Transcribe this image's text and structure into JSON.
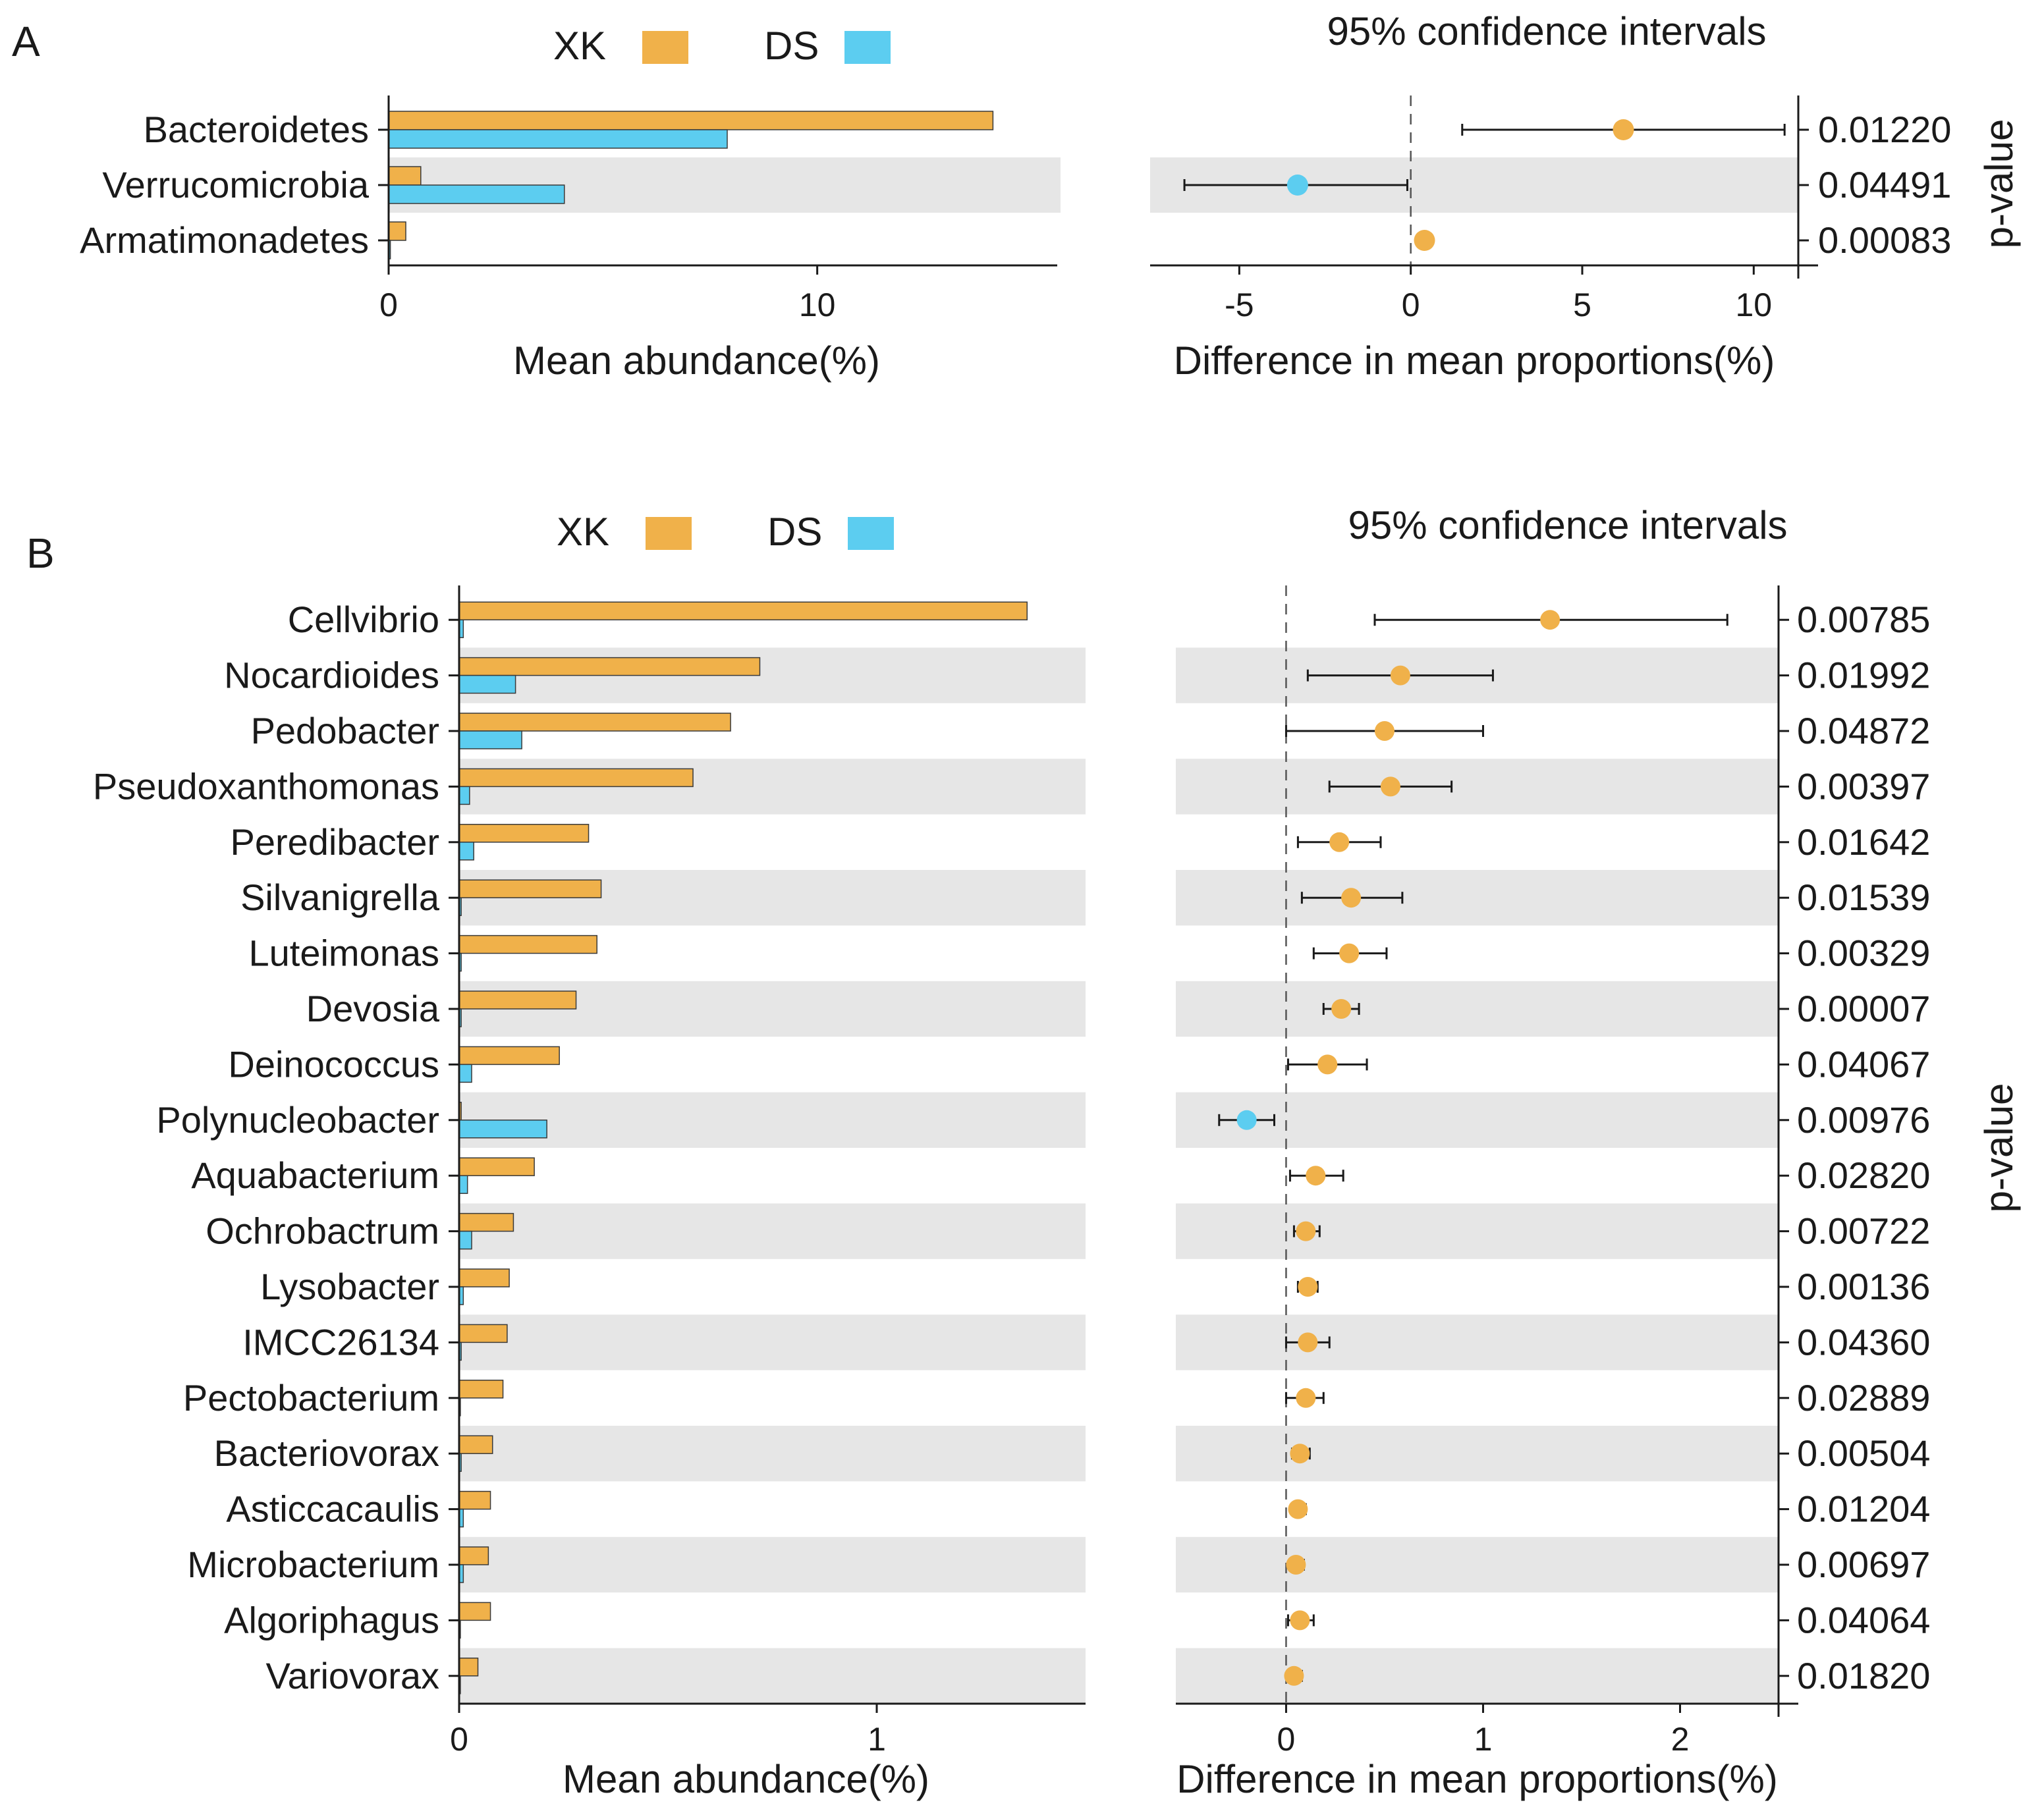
{
  "colors": {
    "xk": "#F0B14A",
    "ds": "#5CCDF0",
    "stripe": "#E6E6E6",
    "axis": "#1a1a1a"
  },
  "chart_data": [
    {
      "panel": "A",
      "type": "bar",
      "legend": [
        {
          "name": "XK",
          "color": "#F0B14A"
        },
        {
          "name": "DS",
          "color": "#5CCDF0"
        }
      ],
      "categories": [
        "Bacteroidetes",
        "Verrucomicrobia",
        "Armatimonadetes"
      ],
      "series": [
        {
          "name": "XK",
          "values": [
            14.1,
            0.75,
            0.4
          ]
        },
        {
          "name": "DS",
          "values": [
            7.9,
            4.1,
            0.04
          ]
        }
      ],
      "xlabel": "Mean abundance(%)",
      "xlim": [
        0,
        15.6
      ],
      "xticks": [
        0,
        10
      ],
      "ci": {
        "title": "95% confidence intervals",
        "xlabel": "Difference in mean proportions(%)",
        "xlim": [
          -7.6,
          11.3
        ],
        "xticks": [
          -5,
          0,
          5,
          10
        ],
        "points": [
          {
            "mean": 6.2,
            "low": 1.5,
            "high": 10.9,
            "group": "XK"
          },
          {
            "mean": -3.3,
            "low": -6.6,
            "high": -0.1,
            "group": "DS"
          },
          {
            "mean": 0.4,
            "low": 0.25,
            "high": 0.55,
            "group": "XK"
          }
        ],
        "pvalue_label": "p-value",
        "pvalues": [
          "0.01220",
          "0.04491",
          "0.00083"
        ]
      }
    },
    {
      "panel": "B",
      "type": "bar",
      "legend": [
        {
          "name": "XK",
          "color": "#F0B14A"
        },
        {
          "name": "DS",
          "color": "#5CCDF0"
        }
      ],
      "categories": [
        "Cellvibrio",
        "Nocardioides",
        "Pedobacter",
        "Pseudoxanthomonas",
        "Peredibacter",
        "Silvanigrella",
        "Luteimonas",
        "Devosia",
        "Deinococcus",
        "Polynucleobacter",
        "Aquabacterium",
        "Ochrobactrum",
        "Lysobacter",
        "IMCC26134",
        "Pectobacterium",
        "Bacteriovorax",
        "Asticcacaulis",
        "Microbacterium",
        "Algoriphagus",
        "Variovorax"
      ],
      "series": [
        {
          "name": "XK",
          "values": [
            1.36,
            0.72,
            0.65,
            0.56,
            0.31,
            0.34,
            0.33,
            0.28,
            0.24,
            0.005,
            0.18,
            0.13,
            0.12,
            0.115,
            0.105,
            0.08,
            0.075,
            0.07,
            0.075,
            0.045
          ]
        },
        {
          "name": "DS",
          "values": [
            0.01,
            0.135,
            0.15,
            0.025,
            0.035,
            0.005,
            0.005,
            0.005,
            0.03,
            0.21,
            0.02,
            0.03,
            0.01,
            0.005,
            0.003,
            0.005,
            0.01,
            0.01,
            0.003,
            0.003
          ]
        }
      ],
      "xlabel": "Mean abundance(%)",
      "xlim": [
        0,
        1.5
      ],
      "xticks": [
        0,
        1
      ],
      "ci": {
        "title": "95% confidence intervals",
        "xlabel": "Difference in mean proportions(%)",
        "xlim": [
          -0.56,
          2.5
        ],
        "xticks": [
          0,
          1,
          2
        ],
        "points": [
          {
            "mean": 1.34,
            "low": 0.45,
            "high": 2.24,
            "group": "XK"
          },
          {
            "mean": 0.58,
            "low": 0.11,
            "high": 1.05,
            "group": "XK"
          },
          {
            "mean": 0.5,
            "low": 0.0,
            "high": 1.0,
            "group": "XK"
          },
          {
            "mean": 0.53,
            "low": 0.22,
            "high": 0.84,
            "group": "XK"
          },
          {
            "mean": 0.27,
            "low": 0.06,
            "high": 0.48,
            "group": "XK"
          },
          {
            "mean": 0.33,
            "low": 0.08,
            "high": 0.59,
            "group": "XK"
          },
          {
            "mean": 0.32,
            "low": 0.14,
            "high": 0.51,
            "group": "XK"
          },
          {
            "mean": 0.28,
            "low": 0.19,
            "high": 0.37,
            "group": "XK"
          },
          {
            "mean": 0.21,
            "low": 0.01,
            "high": 0.41,
            "group": "XK"
          },
          {
            "mean": -0.2,
            "low": -0.34,
            "high": -0.06,
            "group": "DS"
          },
          {
            "mean": 0.15,
            "low": 0.02,
            "high": 0.29,
            "group": "XK"
          },
          {
            "mean": 0.1,
            "low": 0.04,
            "high": 0.17,
            "group": "XK"
          },
          {
            "mean": 0.11,
            "low": 0.06,
            "high": 0.16,
            "group": "XK"
          },
          {
            "mean": 0.11,
            "low": 0.0,
            "high": 0.22,
            "group": "XK"
          },
          {
            "mean": 0.1,
            "low": 0.0,
            "high": 0.19,
            "group": "XK"
          },
          {
            "mean": 0.07,
            "low": 0.03,
            "high": 0.12,
            "group": "XK"
          },
          {
            "mean": 0.06,
            "low": 0.03,
            "high": 0.1,
            "group": "XK"
          },
          {
            "mean": 0.05,
            "low": 0.02,
            "high": 0.09,
            "group": "XK"
          },
          {
            "mean": 0.07,
            "low": 0.01,
            "high": 0.14,
            "group": "XK"
          },
          {
            "mean": 0.04,
            "low": 0.01,
            "high": 0.08,
            "group": "XK"
          }
        ],
        "pvalue_label": "p-value",
        "pvalues": [
          "0.00785",
          "0.01992",
          "0.04872",
          "0.00397",
          "0.01642",
          "0.01539",
          "0.00329",
          "0.00007",
          "0.04067",
          "0.00976",
          "0.02820",
          "0.00722",
          "0.00136",
          "0.04360",
          "0.02889",
          "0.00504",
          "0.01204",
          "0.00697",
          "0.04064",
          "0.01820"
        ]
      }
    }
  ]
}
